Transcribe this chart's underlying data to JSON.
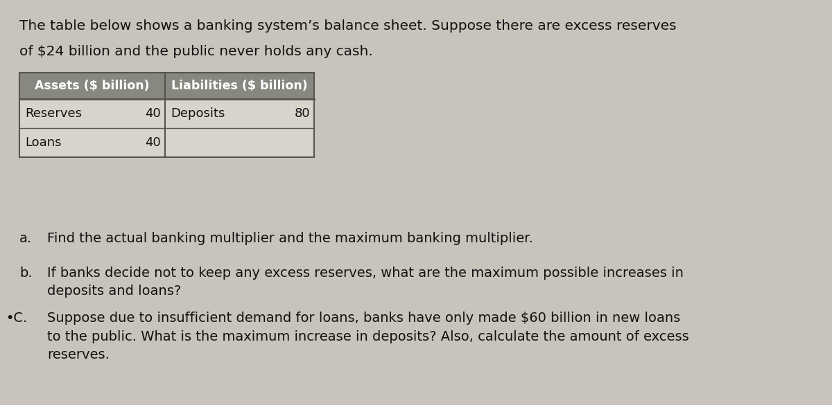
{
  "background_color": "#c8c4bc",
  "paper_color": "#dedad4",
  "intro_line1": "The table below shows a banking system’s balance sheet. Suppose there are excess reserves",
  "intro_line2": "of $24 billion and the public never holds any cash.",
  "table_header": [
    "Assets ($ billion)",
    "Liabilities ($ billion)"
  ],
  "table_rows": [
    [
      "Reserves",
      "40",
      "Deposits",
      "80"
    ],
    [
      "Loans",
      "40",
      "",
      ""
    ]
  ],
  "header_bg": "#888880",
  "header_text_color": "#ffffff",
  "row_bg": "#d8d4cc",
  "border_color": "#555550",
  "q_a_label": "a.",
  "q_a_text": "Find the actual banking multiplier and the maximum banking multiplier.",
  "q_b_label": "b.",
  "q_b_text": "If banks decide not to keep any excess reserves, what are the maximum possible increases in\ndeposits and loans?",
  "q_c_label": "•C.",
  "q_c_text": "Suppose due to insufficient demand for loans, banks have only made $60 billion in new loans\nto the public. What is the maximum increase in deposits? Also, calculate the amount of excess\nreserves.",
  "font_size_intro": 14.5,
  "font_size_header": 12.5,
  "font_size_body": 13,
  "font_size_q": 14
}
